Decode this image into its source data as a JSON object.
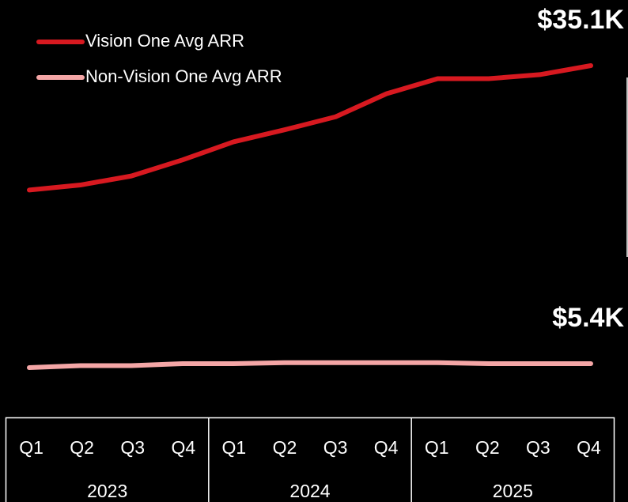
{
  "chart_data": {
    "type": "line",
    "categories": [
      "Q1",
      "Q2",
      "Q3",
      "Q4",
      "Q1",
      "Q2",
      "Q3",
      "Q4",
      "Q1",
      "Q2",
      "Q3",
      "Q4"
    ],
    "groups": [
      "2023",
      "2024",
      "2025"
    ],
    "series": [
      {
        "name": "Vision One Avg ARR",
        "color": "#d71920",
        "values": [
          22.7,
          23.2,
          24.1,
          25.7,
          27.5,
          28.7,
          30.0,
          32.3,
          33.8,
          33.8,
          34.2,
          35.1
        ],
        "value_labels": [
          null,
          null,
          null,
          null,
          null,
          null,
          null,
          null,
          null,
          null,
          null,
          "$35.1K"
        ]
      },
      {
        "name": "Non-Vision One Avg ARR",
        "color": "#f4a6a6",
        "values": [
          5.0,
          5.2,
          5.2,
          5.4,
          5.4,
          5.5,
          5.5,
          5.5,
          5.5,
          5.4,
          5.4,
          5.4
        ],
        "value_labels": [
          null,
          null,
          null,
          null,
          null,
          null,
          null,
          null,
          null,
          null,
          null,
          "$5.4K"
        ]
      }
    ]
  }
}
